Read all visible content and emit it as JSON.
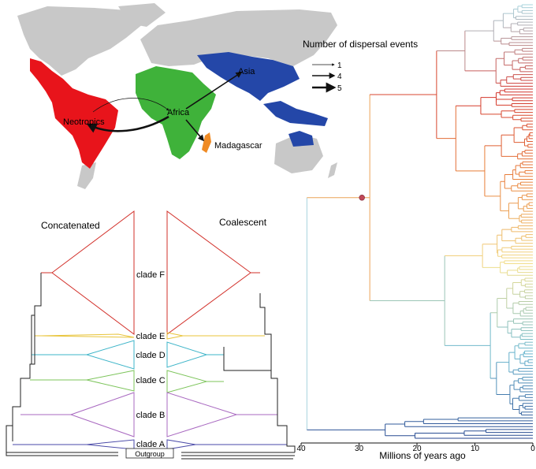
{
  "map": {
    "legend_title": "Number of dispersal events",
    "legend_items": [
      {
        "label": "1",
        "weight": 1
      },
      {
        "label": "4",
        "weight": 4
      },
      {
        "label": "5",
        "weight": 5
      }
    ],
    "regions": [
      {
        "name": "Neotropics",
        "color": "#e8141b"
      },
      {
        "name": "Africa",
        "color": "#3fb23a"
      },
      {
        "name": "Asia",
        "color": "#2447a8"
      },
      {
        "name": "Madagascar",
        "color": "#ef8a24"
      }
    ],
    "land_color": "#c8c8c8",
    "arrows": [
      {
        "from": "Africa",
        "to": "Neotropics",
        "events": 5
      },
      {
        "from": "Neotropics",
        "to": "Africa",
        "events": 1
      },
      {
        "from": "Africa",
        "to": "Asia",
        "events": 4
      },
      {
        "from": "Africa",
        "to": "Madagascar",
        "events": 4
      }
    ]
  },
  "trees": {
    "left_title": "Concatenated",
    "right_title": "Coalescent",
    "clades": [
      {
        "label": "clade F",
        "color": "#d2302a"
      },
      {
        "label": "clade E",
        "color": "#e8c43a"
      },
      {
        "label": "clade D",
        "color": "#3cb4c8"
      },
      {
        "label": "clade C",
        "color": "#7cc45a"
      },
      {
        "label": "clade B",
        "color": "#a868c0"
      },
      {
        "label": "clade A",
        "color": "#4a4aa8"
      }
    ],
    "outgroup_label": "Outgroup"
  },
  "timetree": {
    "xlabel": "Millions of years ago",
    "ticks": [
      40,
      30,
      20,
      10,
      0
    ],
    "xlim": [
      40,
      0
    ],
    "root_age": 39,
    "node_marker_age": 29.5,
    "gradient": [
      "#a7d4de",
      "#d2322b",
      "#e9813a",
      "#f2df8a",
      "#6ab7cf",
      "#24468f"
    ],
    "marker_color": "#c04858"
  }
}
